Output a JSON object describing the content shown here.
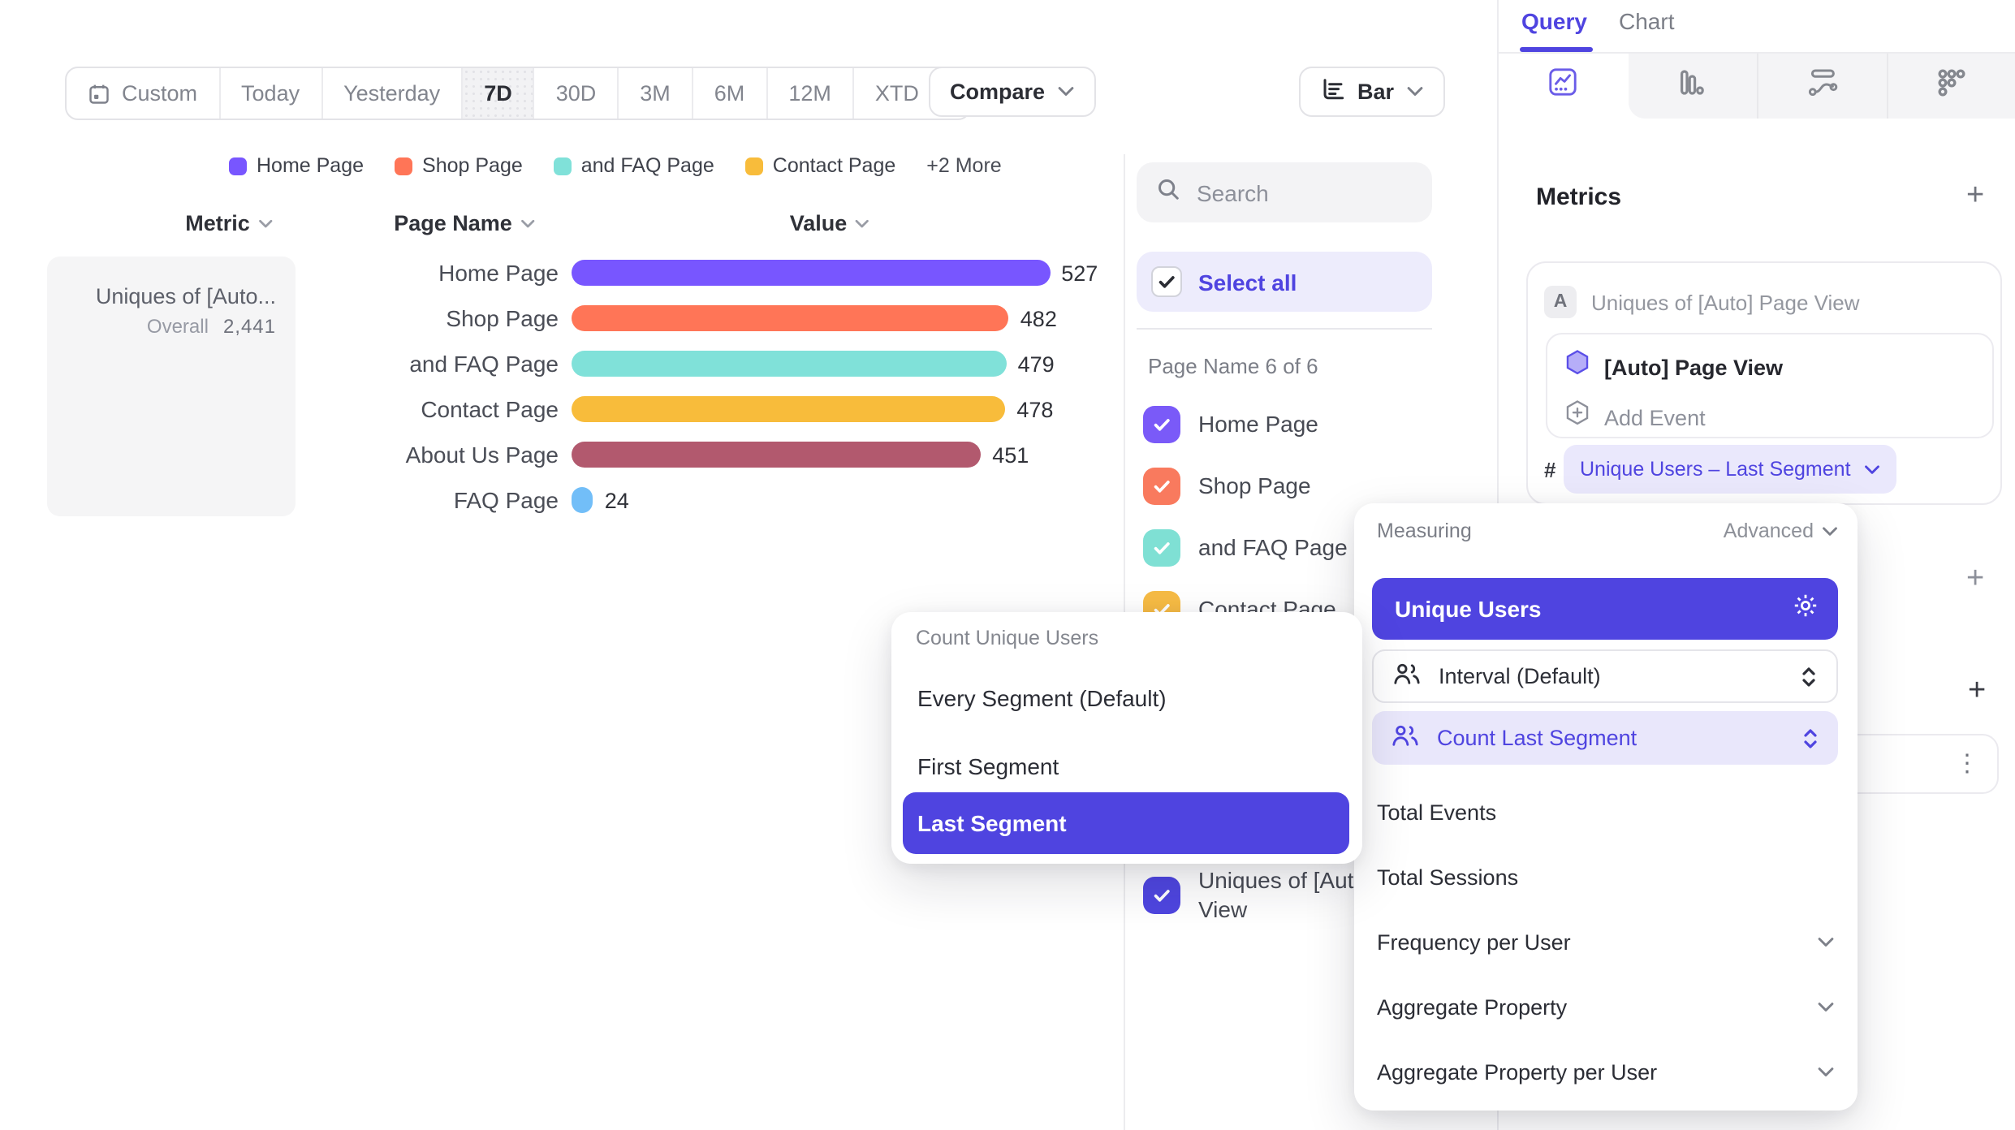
{
  "toolbar": {
    "date_ranges": [
      "Custom",
      "Today",
      "Yesterday",
      "7D",
      "30D",
      "3M",
      "6M",
      "12M",
      "XTD"
    ],
    "active_range": "7D",
    "compare_label": "Compare",
    "chart_type_label": "Bar"
  },
  "legend": {
    "items": [
      {
        "label": "Home Page",
        "color": "#7856FF"
      },
      {
        "label": "Shop Page",
        "color": "#FF7557"
      },
      {
        "label": "and FAQ Page",
        "color": "#80E1D9"
      },
      {
        "label": "Contact Page",
        "color": "#F8BC3B"
      }
    ],
    "more_label": "+2 More"
  },
  "table": {
    "headers": {
      "metric": "Metric",
      "page_name": "Page Name",
      "value": "Value"
    },
    "metric_card": {
      "title": "Uniques of [Auto...",
      "overall_label": "Overall",
      "overall_value": "2,441"
    }
  },
  "chart_data": {
    "type": "bar",
    "orientation": "horizontal",
    "categories": [
      "Home Page",
      "Shop Page",
      "and FAQ Page",
      "Contact Page",
      "About Us Page",
      "FAQ Page"
    ],
    "values": [
      527,
      482,
      479,
      478,
      451,
      24
    ],
    "colors": [
      "#7856FF",
      "#FF7557",
      "#80E1D9",
      "#F8BC3B",
      "#B2596E",
      "#72BEF8"
    ],
    "series_name": "Uniques of [Auto] Page View",
    "overall_total": 2441
  },
  "filter_panel": {
    "search_placeholder": "Search",
    "select_all_label": "Select all",
    "section_label": "Page Name 6 of 6",
    "items": [
      {
        "label": "Home Page",
        "color": "#7A5AF8",
        "checked": true
      },
      {
        "label": "Shop Page",
        "color": "#F97A5E",
        "checked": true
      },
      {
        "label": "and FAQ Page",
        "color": "#7FE0D4",
        "checked": true
      },
      {
        "label": "Contact Page",
        "color": "#F6BB45",
        "checked": true
      }
    ],
    "metric_item": {
      "line1": "Uniques of [Auto]",
      "line2": "View",
      "color": "#4F46E0",
      "checked": true
    }
  },
  "segment_popup": {
    "title": "Count Unique Users",
    "options": [
      {
        "label": "Every Segment (Default)",
        "selected": false
      },
      {
        "label": "First Segment",
        "selected": false
      },
      {
        "label": "Last Segment",
        "selected": true
      }
    ]
  },
  "measuring_popup": {
    "title": "Measuring",
    "advanced_label": "Advanced",
    "selected_measure": "Unique Users",
    "interval_label": "Interval (Default)",
    "count_label": "Count Last Segment",
    "menu_items": [
      {
        "label": "Total Events",
        "expandable": false
      },
      {
        "label": "Total Sessions",
        "expandable": false
      },
      {
        "label": "Frequency per User",
        "expandable": true
      },
      {
        "label": "Aggregate Property",
        "expandable": true
      },
      {
        "label": "Aggregate Property per User",
        "expandable": true
      }
    ]
  },
  "query_panel": {
    "tabs": {
      "query": "Query",
      "chart": "Chart"
    },
    "active_tab": "Query",
    "metrics_heading": "Metrics",
    "add_metric_label": "+",
    "metric_card": {
      "badge": "A",
      "title": "Uniques of [Auto] Page View",
      "event_name": "[Auto] Page View",
      "add_event_label": "Add Event",
      "measure_prefix": "#",
      "measure_label": "Unique Users – Last Segment"
    }
  },
  "colors": {
    "accent": "#4F44E0",
    "accent_light_bg": "#EAE8FC",
    "text_dark": "#2B2D34",
    "text_gray": "#7B7E87",
    "border": "#E3E3E7"
  }
}
